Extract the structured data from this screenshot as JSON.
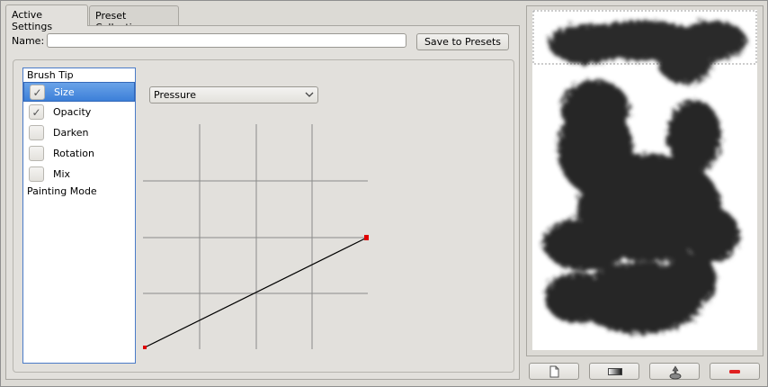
{
  "tabs": [
    {
      "label": "Active Settings",
      "active": true
    },
    {
      "label": "Preset Collection",
      "active": false
    }
  ],
  "name_field": {
    "label": "Name:",
    "value": ""
  },
  "save_button": {
    "label": "Save to Presets"
  },
  "settings_list": {
    "group_header": "Brush Tip",
    "items": [
      {
        "label": "Size",
        "checked": true,
        "selected": true
      },
      {
        "label": "Opacity",
        "checked": true,
        "selected": false
      },
      {
        "label": "Darken",
        "checked": false,
        "selected": false
      },
      {
        "label": "Rotation",
        "checked": false,
        "selected": false
      },
      {
        "label": "Mix",
        "checked": false,
        "selected": false
      }
    ],
    "footer_header": "Painting Mode"
  },
  "sensor_combo": {
    "selected": "Pressure"
  },
  "curve": {
    "points": [
      [
        0,
        0
      ],
      [
        1,
        0.5
      ]
    ],
    "point_color": "#e00000"
  },
  "bottom_buttons": [
    {
      "name": "new-document-button",
      "icon": "document-icon"
    },
    {
      "name": "gradient-button",
      "icon": "gradient-icon"
    },
    {
      "name": "brush-button",
      "icon": "brush-icon"
    },
    {
      "name": "remove-button",
      "icon": "minus-icon"
    }
  ],
  "colors": {
    "selection": "#3c7fd8",
    "remove": "#e02020"
  }
}
